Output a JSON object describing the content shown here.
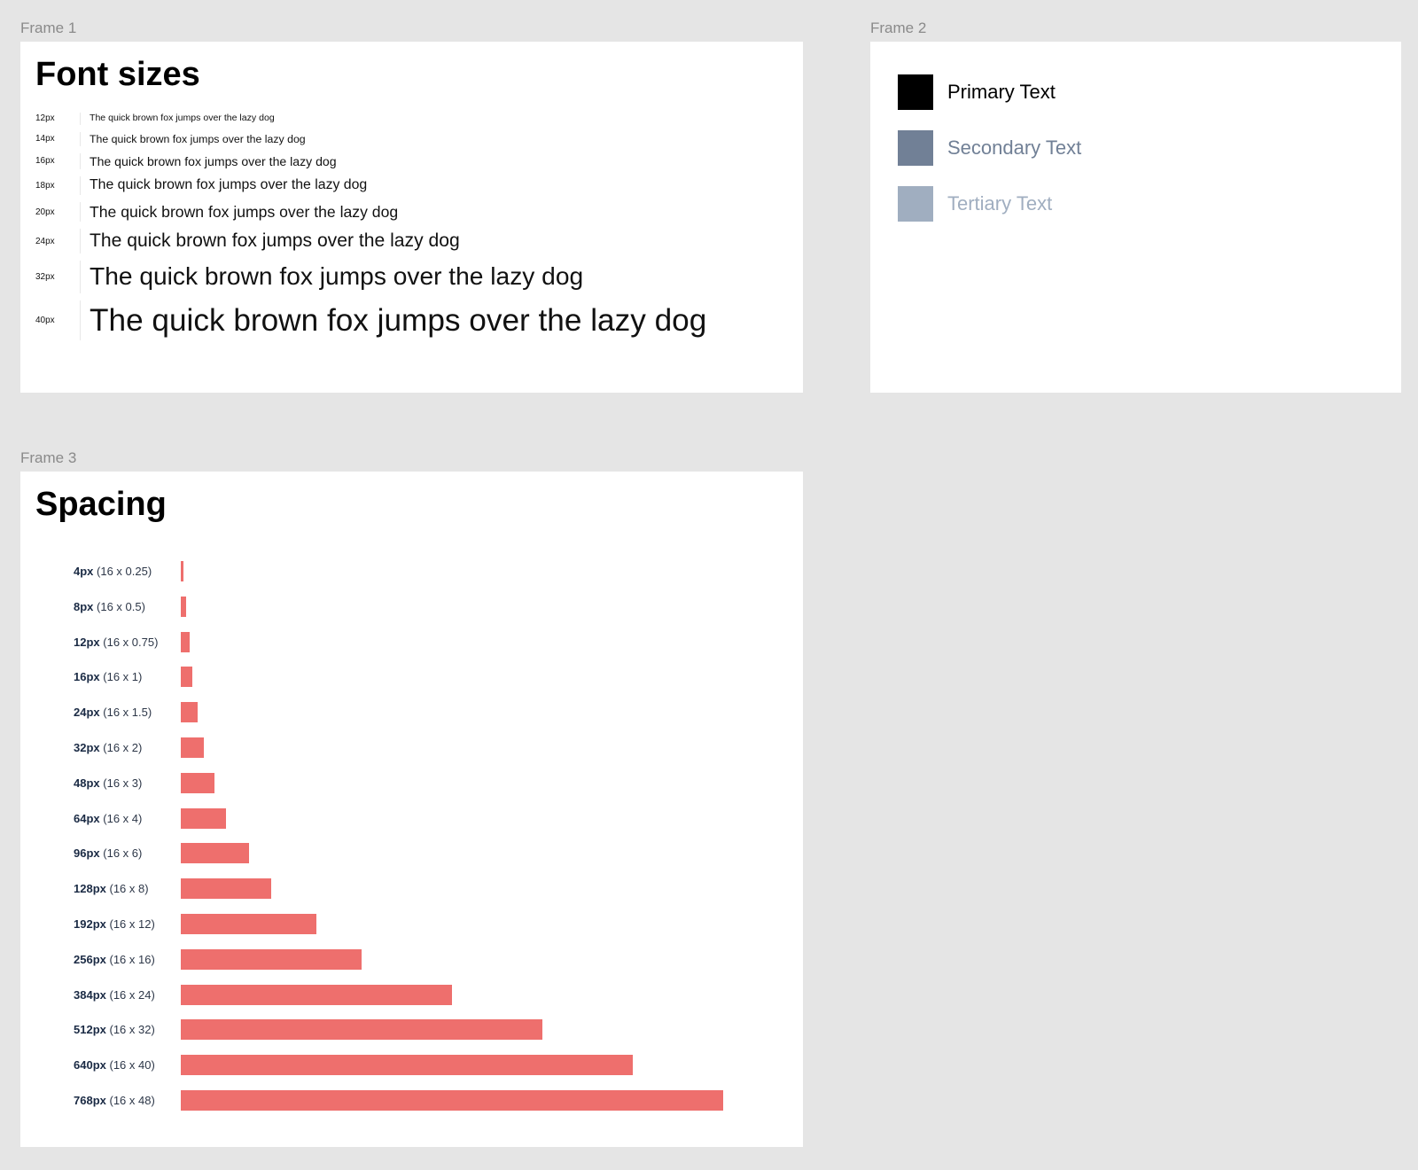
{
  "frames": [
    {
      "label": "Frame 1",
      "title": "Font sizes",
      "rows": [
        {
          "size": "12px",
          "sample": "The quick brown fox jumps over the lazy dog"
        },
        {
          "size": "14px",
          "sample": "The quick brown fox jumps over the lazy dog"
        },
        {
          "size": "16px",
          "sample": "The quick brown fox jumps over the lazy dog"
        },
        {
          "size": "18px",
          "sample": "The quick brown fox jumps over the lazy dog"
        },
        {
          "size": "20px",
          "sample": "The quick brown fox jumps over the lazy dog"
        },
        {
          "size": "24px",
          "sample": "The quick brown fox jumps over the lazy dog"
        },
        {
          "size": "32px",
          "sample": "The quick brown fox jumps over the lazy dog"
        },
        {
          "size": "40px",
          "sample": "The quick brown fox jumps over the lazy dog"
        }
      ]
    },
    {
      "label": "Frame 2",
      "items": [
        {
          "text": "Primary Text",
          "color": "#000000"
        },
        {
          "text": "Secondary Text",
          "color": "#718096"
        },
        {
          "text": "Tertiary Text",
          "color": "#a0aec0"
        }
      ]
    },
    {
      "label": "Frame 3",
      "title": "Spacing",
      "bar_color": "#ee6f6d",
      "rows": [
        {
          "value": 4,
          "label": "4px",
          "formula": "(16 x 0.25)"
        },
        {
          "value": 8,
          "label": "8px",
          "formula": "(16 x 0.5)"
        },
        {
          "value": 12,
          "label": "12px",
          "formula": "(16 x 0.75)"
        },
        {
          "value": 16,
          "label": "16px",
          "formula": "(16 x 1)"
        },
        {
          "value": 24,
          "label": "24px",
          "formula": "(16 x 1.5)"
        },
        {
          "value": 32,
          "label": "32px",
          "formula": "(16 x 2)"
        },
        {
          "value": 48,
          "label": "48px",
          "formula": "(16 x 3)"
        },
        {
          "value": 64,
          "label": "64px",
          "formula": "(16 x 4)"
        },
        {
          "value": 96,
          "label": "96px",
          "formula": "(16 x 6)"
        },
        {
          "value": 128,
          "label": "128px",
          "formula": "(16 x 8)"
        },
        {
          "value": 192,
          "label": "192px",
          "formula": "(16 x 12)"
        },
        {
          "value": 256,
          "label": "256px",
          "formula": "(16 x 16)"
        },
        {
          "value": 384,
          "label": "384px",
          "formula": "(16 x 24)"
        },
        {
          "value": 512,
          "label": "512px",
          "formula": "(16 x 32)"
        },
        {
          "value": 640,
          "label": "640px",
          "formula": "(16 x 40)"
        },
        {
          "value": 768,
          "label": "768px",
          "formula": "(16 x 48)"
        }
      ]
    }
  ]
}
